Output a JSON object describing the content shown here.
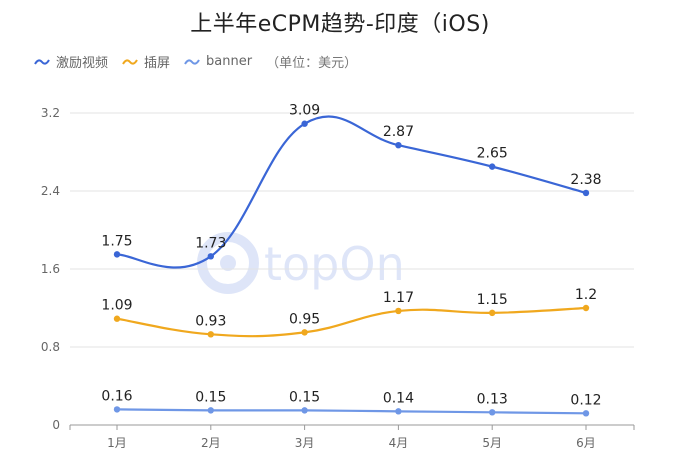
{
  "title": "上半年eCPM趋势-印度（iOS)",
  "legend": {
    "items": [
      {
        "name": "激励视频",
        "color": "#3a66d6"
      },
      {
        "name": "插屏",
        "color": "#f0a81e"
      },
      {
        "name": "banner",
        "color": "#6f97e6"
      }
    ],
    "note": "（单位：美元）"
  },
  "watermark_text": "topOn",
  "chart_data": {
    "type": "line",
    "title": "上半年eCPM趋势-印度（iOS)",
    "categories": [
      "1月",
      "2月",
      "3月",
      "4月",
      "5月",
      "6月"
    ],
    "ylim": [
      0,
      3.2
    ],
    "yticks": [
      "0",
      "0.8",
      "1.6",
      "2.4",
      "3.2"
    ],
    "grid": true,
    "legend_position": "top-left",
    "unit": "（单位：美元）",
    "series": [
      {
        "name": "激励视频",
        "color": "#3a66d6",
        "values": [
          1.75,
          1.73,
          3.09,
          2.87,
          2.65,
          2.38
        ],
        "labels": [
          "1.75",
          "1.73",
          "3.09",
          "2.87",
          "2.65",
          "2.38"
        ]
      },
      {
        "name": "插屏",
        "color": "#f0a81e",
        "values": [
          1.09,
          0.93,
          0.95,
          1.17,
          1.15,
          1.2
        ],
        "labels": [
          "1.09",
          "0.93",
          "0.95",
          "1.17",
          "1.15",
          "1.2"
        ]
      },
      {
        "name": "banner",
        "color": "#6f97e6",
        "values": [
          0.16,
          0.15,
          0.15,
          0.14,
          0.13,
          0.12
        ],
        "labels": [
          "0.16",
          "0.15",
          "0.15",
          "0.14",
          "0.13",
          "0.12"
        ]
      }
    ]
  }
}
